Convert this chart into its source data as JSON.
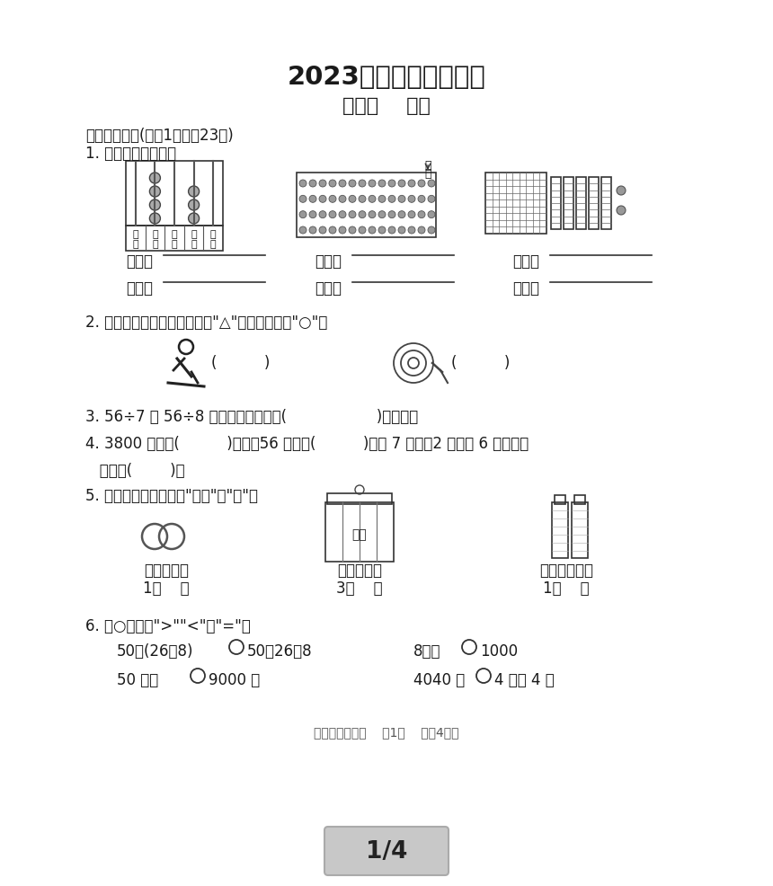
{
  "title": "2023年上学期期末练习",
  "subtitle": "二年级    数学",
  "section1": "一、我会填。(每空1分，共23分)",
  "q1": "1. 看图写数，读数。",
  "q2": "2. 下面的现象中，是平移的画\"△\"，是旋转的画\"○\"。",
  "q3": "3. 56÷7 和 56÷8 都可以用乘法口诀(                   )来计算。",
  "q4": "4. 3800 里面有(          )个百；56 个十是(          )；由 7 个千，2 个十和 6 个一组成",
  "q4b": "   的数是(        )。",
  "q5": "5. 在下面的括号里填上\"千克\"或\"克\"。",
  "q6": "6. 在○里填上\">\"\"<\"或\"=\"。",
  "q6_row1a": "50－(26－8)",
  "q6_row1b_left": "50－26＋8",
  "q6_row2a_left": "8个百",
  "q6_row2a_right": "1000",
  "q6_row3a_left": "50 千克",
  "q6_row3a_right": "9000 克",
  "q6_row3b_left": "4040 克",
  "q6_row3b_right": "4 千克 4 克",
  "footer": "二年级数学试卷    第1页    （共4页）",
  "page": "1/4",
  "bg_color": "#ffffff",
  "text_color": "#1a1a1a"
}
